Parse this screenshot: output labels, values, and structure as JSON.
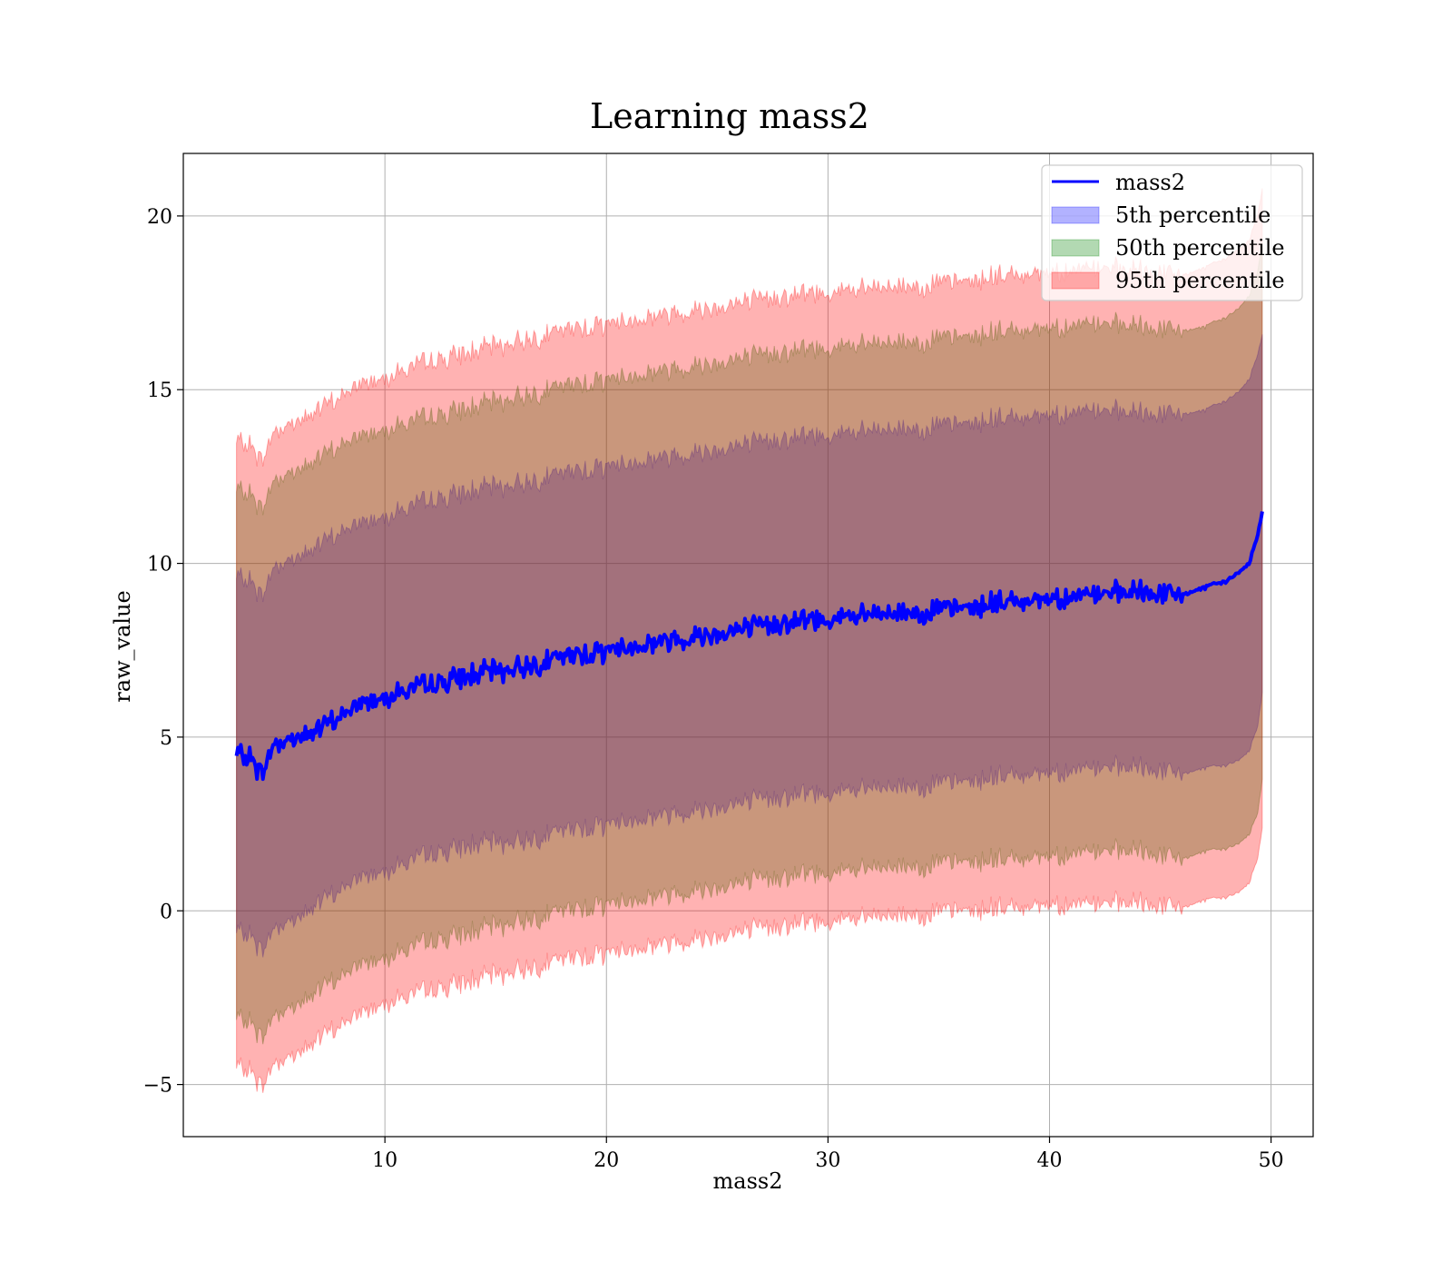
{
  "chart_data": {
    "type": "area",
    "title": "Learning mass2",
    "xlabel": "mass2",
    "ylabel": "raw_value",
    "xlim": [
      0.9,
      51.9
    ],
    "ylim": [
      -6.5,
      21.8
    ],
    "xticks": [
      10,
      20,
      30,
      40,
      50
    ],
    "yticks": [
      -5,
      0,
      5,
      10,
      15,
      20
    ],
    "xtick_labels": [
      "10",
      "20",
      "30",
      "40",
      "50"
    ],
    "ytick_labels": [
      "−5",
      "0",
      "5",
      "10",
      "15",
      "20"
    ],
    "grid": true,
    "legend_position": "top-right",
    "x": [
      3.3,
      4.0,
      4.4,
      5.0,
      6.0,
      7.0,
      8.0,
      9.0,
      10.0,
      12.0,
      14.0,
      16.0,
      18.0,
      20.0,
      22.0,
      24.0,
      26.0,
      28.0,
      30.0,
      32.0,
      34.0,
      36.0,
      38.0,
      40.0,
      42.0,
      44.0,
      46.0,
      47.0,
      48.0,
      48.5,
      49.0,
      49.4,
      49.6
    ],
    "series": [
      {
        "name": "mass2",
        "kind": "line",
        "color": "#0000ff",
        "values": [
          4.5,
          4.4,
          3.9,
          4.8,
          5.0,
          5.2,
          5.6,
          6.0,
          6.2,
          6.5,
          6.8,
          7.0,
          7.3,
          7.5,
          7.7,
          7.9,
          8.1,
          8.3,
          8.4,
          8.5,
          8.6,
          8.7,
          8.9,
          9.0,
          9.1,
          9.15,
          9.1,
          9.3,
          9.5,
          9.7,
          10.0,
          10.8,
          11.5
        ]
      },
      {
        "name": "5th percentile",
        "kind": "band",
        "color": "#0000ff",
        "lower": [
          -0.6,
          -0.7,
          -1.2,
          -0.5,
          -0.2,
          0.2,
          0.6,
          1.0,
          1.2,
          1.6,
          1.9,
          2.0,
          2.3,
          2.5,
          2.7,
          2.9,
          3.1,
          3.3,
          3.4,
          3.5,
          3.6,
          3.7,
          3.9,
          4.0,
          4.1,
          4.1,
          3.95,
          4.1,
          4.2,
          4.3,
          4.6,
          5.3,
          6.3
        ],
        "upper": [
          9.6,
          9.5,
          9.0,
          9.9,
          10.2,
          10.5,
          10.9,
          11.2,
          11.4,
          11.8,
          12.1,
          12.3,
          12.6,
          12.8,
          13.0,
          13.2,
          13.4,
          13.6,
          13.7,
          13.8,
          13.9,
          14.0,
          14.2,
          14.3,
          14.4,
          14.3,
          14.3,
          14.4,
          14.7,
          14.9,
          15.3,
          16.0,
          16.6
        ]
      },
      {
        "name": "50th percentile",
        "kind": "band",
        "color": "#008000",
        "lower": [
          -3.1,
          -3.2,
          -3.7,
          -3.0,
          -2.7,
          -2.3,
          -1.9,
          -1.5,
          -1.3,
          -0.9,
          -0.6,
          -0.3,
          0.0,
          0.2,
          0.4,
          0.6,
          0.8,
          1.0,
          1.1,
          1.2,
          1.3,
          1.4,
          1.5,
          1.6,
          1.7,
          1.7,
          1.5,
          1.7,
          1.8,
          1.9,
          2.2,
          2.8,
          3.8
        ],
        "upper": [
          12.1,
          12.0,
          11.5,
          12.4,
          12.7,
          13.0,
          13.4,
          13.7,
          13.9,
          14.2,
          14.5,
          14.8,
          15.1,
          15.3,
          15.5,
          15.7,
          15.9,
          16.1,
          16.2,
          16.3,
          16.4,
          16.5,
          16.7,
          16.8,
          16.9,
          16.8,
          16.7,
          16.8,
          17.1,
          17.3,
          17.7,
          18.4,
          19.2
        ]
      },
      {
        "name": "95th percentile",
        "kind": "band",
        "color": "#ff0000",
        "lower": [
          -4.5,
          -4.6,
          -5.1,
          -4.4,
          -4.1,
          -3.7,
          -3.3,
          -2.9,
          -2.6,
          -2.3,
          -2.0,
          -1.7,
          -1.4,
          -1.2,
          -1.0,
          -0.8,
          -0.6,
          -0.4,
          -0.3,
          -0.2,
          -0.1,
          0.0,
          0.1,
          0.2,
          0.2,
          0.2,
          0.1,
          0.3,
          0.4,
          0.5,
          0.8,
          1.5,
          2.4
        ],
        "upper": [
          13.5,
          13.4,
          12.9,
          13.8,
          14.1,
          14.4,
          14.8,
          15.2,
          15.4,
          15.8,
          16.1,
          16.4,
          16.7,
          16.9,
          17.1,
          17.3,
          17.5,
          17.7,
          17.8,
          17.9,
          18.0,
          18.1,
          18.3,
          18.4,
          18.5,
          18.4,
          18.3,
          18.5,
          18.8,
          19.0,
          19.3,
          20.0,
          20.8
        ]
      }
    ]
  }
}
